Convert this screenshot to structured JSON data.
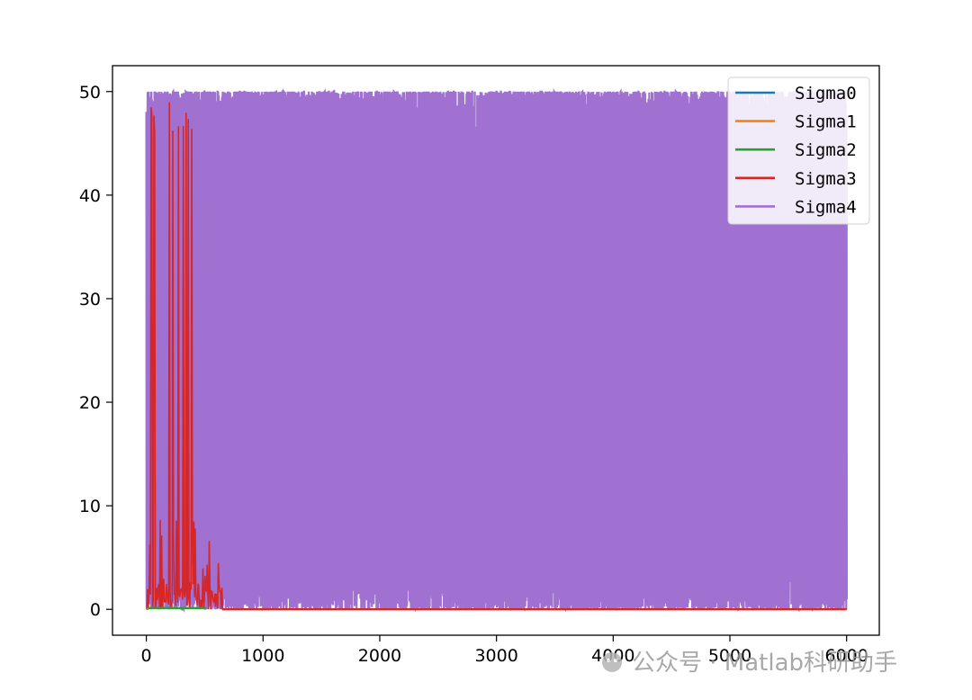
{
  "chart_data": {
    "type": "line",
    "title": "",
    "xlabel": "",
    "ylabel": "",
    "xlim": [
      -290,
      6280
    ],
    "ylim": [
      -2.5,
      52.5
    ],
    "x_ticks": [
      0,
      1000,
      2000,
      3000,
      4000,
      5000,
      6000
    ],
    "y_ticks": [
      0,
      10,
      20,
      30,
      40,
      50
    ],
    "grid": false,
    "legend_position": "top-right",
    "x_range": [
      0,
      6000
    ],
    "series": [
      {
        "name": "Sigma0",
        "color": "#1f77b4",
        "pattern": "zero after first steps",
        "values": [
          0,
          0
        ]
      },
      {
        "name": "Sigma1",
        "color": "#ff7f0e",
        "pattern": "zero after first steps",
        "values": [
          0,
          0
        ]
      },
      {
        "name": "Sigma2",
        "color": "#2ca02c",
        "pattern": "near zero until ~500, then zero",
        "values": [
          0,
          0
        ]
      },
      {
        "name": "Sigma3",
        "color": "#d62728",
        "pattern": "large oscillation (0-49) for first ~650 steps, then zero",
        "values": [
          49,
          0
        ]
      },
      {
        "name": "Sigma4",
        "color": "#a071d0",
        "pattern": "dense oscillation between ~0 and ~50 over all 6000 steps",
        "values": [
          0,
          50
        ]
      }
    ]
  },
  "watermark": {
    "text": "公众号 · Matlab科研助手"
  }
}
